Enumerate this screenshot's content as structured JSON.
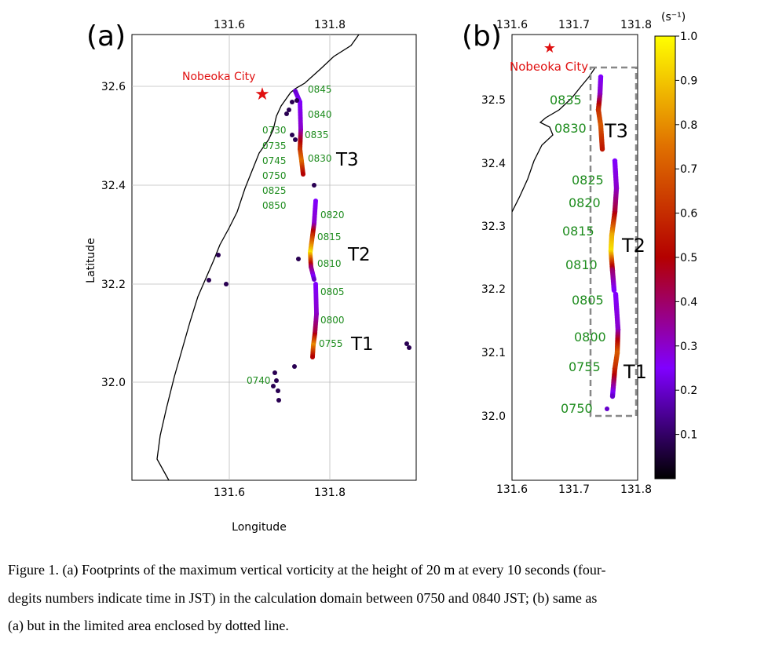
{
  "panel_a": {
    "label": "(a)",
    "city": "Nobeoka City",
    "lon_ticks": [
      "131.6",
      "131.8"
    ],
    "lat_ticks": [
      "32.6",
      "32.4",
      "32.2",
      "32.0"
    ],
    "x_label": "Longitude",
    "y_label": "Latitude",
    "times": [
      "0845",
      "0840",
      "0835",
      "0830",
      "0730",
      "0735",
      "0745",
      "0750",
      "0825",
      "0850",
      "0820",
      "0815",
      "0810",
      "0805",
      "0800",
      "0755",
      "0740"
    ],
    "tracks": [
      "T3",
      "T2",
      "T1"
    ]
  },
  "panel_b": {
    "label": "(b)",
    "city": "Nobeoka City",
    "lon_ticks": [
      "131.6",
      "131.7",
      "131.8"
    ],
    "lat_ticks": [
      "32.5",
      "32.4",
      "32.3",
      "32.2",
      "32.1",
      "32.0"
    ],
    "times": [
      "0835",
      "0830",
      "0825",
      "0820",
      "0815",
      "0810",
      "0805",
      "0800",
      "0755",
      "0750"
    ],
    "tracks": [
      "T3",
      "T2",
      "T1"
    ]
  },
  "colorbar": {
    "unit": "(s⁻¹)",
    "ticks": [
      "1.0",
      "0.9",
      "0.8",
      "0.7",
      "0.6",
      "0.5",
      "0.4",
      "0.3",
      "0.2",
      "0.1"
    ]
  },
  "caption": [
    "Figure 1. (a) Footprints of the maximum vertical vorticity at the height of 20 m at every 10 seconds (four-",
    "degits numbers indicate time in JST) in the calculation domain between 0750 and 0840 JST; (b) same as",
    "(a) but in the limited area enclosed by dotted line."
  ]
}
